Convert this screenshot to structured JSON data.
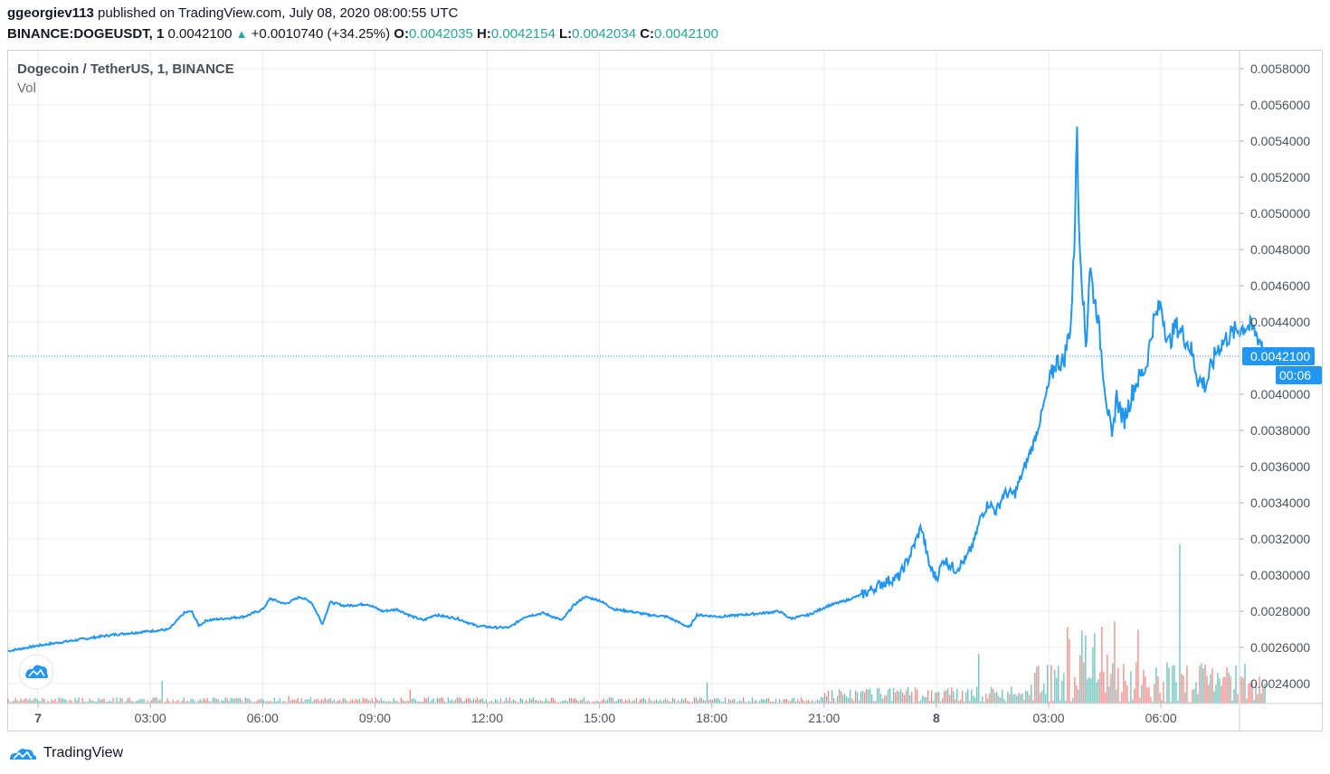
{
  "header": {
    "publisher": "ggeorgiev113",
    "published_text": " published on TradingView.com, July 08, 2020 08:00:55 UTC",
    "symbol": "BINANCE:DOGEUSDT, 1",
    "last": "0.0042100",
    "change": "+0.0010740 (+34.25%)",
    "o_label": "O:",
    "o_value": "0.0042035",
    "h_label": "H:",
    "h_value": "0.0042154",
    "l_label": "L:",
    "l_value": "0.0042034",
    "c_label": "C:",
    "c_value": "0.0042100"
  },
  "legend": {
    "title": "Dogecoin / TetherUS, 1, BINANCE",
    "vol": "Vol"
  },
  "price_badge": "0.0042100",
  "time_badge": "00:06",
  "footer": {
    "brand": "TradingView"
  },
  "colors": {
    "line": "#2196f3",
    "up_volume": "#26a69a",
    "down_volume": "#ef5350",
    "grid": "#e9ecf2",
    "badge": "#2196f3"
  },
  "chart_data": {
    "type": "line",
    "title": "Dogecoin / TetherUS, 1, BINANCE",
    "y_ticks": [
      "0.0058000",
      "0.0056000",
      "0.0054000",
      "0.0052000",
      "0.0050000",
      "0.0048000",
      "0.0046000",
      "0.0044000",
      "0.0040000",
      "0.0038000",
      "0.0036000",
      "0.0034000",
      "0.0032000",
      "0.0030000",
      "0.0028000",
      "0.0026000",
      "0.0024000"
    ],
    "y_tick_values": [
      0.0058,
      0.0056,
      0.0054,
      0.0052,
      0.005,
      0.0048,
      0.0046,
      0.0044,
      0.004,
      0.0038,
      0.0036,
      0.0034,
      0.0032,
      0.003,
      0.0028,
      0.0026,
      0.0024
    ],
    "ylim": [
      0.00229,
      0.0059
    ],
    "x_ticks": [
      {
        "label": "7",
        "hour": 0,
        "bold": true
      },
      {
        "label": "03:00",
        "hour": 3
      },
      {
        "label": "06:00",
        "hour": 6
      },
      {
        "label": "09:00",
        "hour": 9
      },
      {
        "label": "12:00",
        "hour": 12
      },
      {
        "label": "15:00",
        "hour": 15
      },
      {
        "label": "18:00",
        "hour": 18
      },
      {
        "label": "21:00",
        "hour": 21
      },
      {
        "label": "8",
        "hour": 24,
        "bold": true
      },
      {
        "label": "03:00",
        "hour": 27
      },
      {
        "label": "06:00",
        "hour": 30
      }
    ],
    "xlim_hours": [
      -0.8,
      32.1
    ],
    "current_price": 0.00421,
    "series": [
      {
        "type": "line",
        "points": [
          [
            -0.8,
            0.00258
          ],
          [
            0.0,
            0.00261
          ],
          [
            1.0,
            0.00264
          ],
          [
            2.0,
            0.00267
          ],
          [
            3.0,
            0.00269
          ],
          [
            3.5,
            0.0027
          ],
          [
            3.9,
            0.00279
          ],
          [
            4.1,
            0.0028
          ],
          [
            4.3,
            0.00272
          ],
          [
            4.5,
            0.00275
          ],
          [
            5.5,
            0.00277
          ],
          [
            6.0,
            0.00281
          ],
          [
            6.2,
            0.00287
          ],
          [
            6.6,
            0.00284
          ],
          [
            7.0,
            0.00288
          ],
          [
            7.3,
            0.00285
          ],
          [
            7.6,
            0.00273
          ],
          [
            7.8,
            0.00285
          ],
          [
            8.2,
            0.00283
          ],
          [
            8.8,
            0.00284
          ],
          [
            9.2,
            0.0028
          ],
          [
            9.6,
            0.00281
          ],
          [
            10.0,
            0.00277
          ],
          [
            10.3,
            0.00275
          ],
          [
            10.6,
            0.00278
          ],
          [
            11.2,
            0.00276
          ],
          [
            11.7,
            0.00272
          ],
          [
            12.2,
            0.00271
          ],
          [
            12.6,
            0.00271
          ],
          [
            13.0,
            0.00277
          ],
          [
            13.5,
            0.00279
          ],
          [
            14.0,
            0.00275
          ],
          [
            14.3,
            0.00283
          ],
          [
            14.6,
            0.00288
          ],
          [
            15.0,
            0.00286
          ],
          [
            15.4,
            0.00281
          ],
          [
            15.8,
            0.0028
          ],
          [
            16.3,
            0.00278
          ],
          [
            16.8,
            0.00277
          ],
          [
            17.2,
            0.00273
          ],
          [
            17.4,
            0.00271
          ],
          [
            17.6,
            0.00278
          ],
          [
            18.2,
            0.00277
          ],
          [
            18.8,
            0.00278
          ],
          [
            19.4,
            0.00279
          ],
          [
            19.8,
            0.0028
          ],
          [
            20.1,
            0.00276
          ],
          [
            20.6,
            0.00278
          ],
          [
            21.1,
            0.00283
          ],
          [
            21.6,
            0.00286
          ],
          [
            22.1,
            0.0029
          ],
          [
            22.6,
            0.00296
          ],
          [
            23.0,
            0.00299
          ],
          [
            23.3,
            0.00311
          ],
          [
            23.6,
            0.00327
          ],
          [
            23.8,
            0.00306
          ],
          [
            24.0,
            0.00298
          ],
          [
            24.2,
            0.00309
          ],
          [
            24.5,
            0.00303
          ],
          [
            24.8,
            0.00309
          ],
          [
            25.0,
            0.00318
          ],
          [
            25.2,
            0.00333
          ],
          [
            25.4,
            0.0034
          ],
          [
            25.6,
            0.00335
          ],
          [
            25.8,
            0.00345
          ],
          [
            26.1,
            0.00345
          ],
          [
            26.4,
            0.00362
          ],
          [
            26.6,
            0.00373
          ],
          [
            26.8,
            0.00388
          ],
          [
            27.0,
            0.00405
          ],
          [
            27.2,
            0.00418
          ],
          [
            27.4,
            0.00418
          ],
          [
            27.6,
            0.0044
          ],
          [
            27.7,
            0.0049
          ],
          [
            27.75,
            0.00555
          ],
          [
            27.8,
            0.00498
          ],
          [
            27.9,
            0.0046
          ],
          [
            28.0,
            0.00425
          ],
          [
            28.1,
            0.00472
          ],
          [
            28.2,
            0.00455
          ],
          [
            28.3,
            0.00445
          ],
          [
            28.4,
            0.00425
          ],
          [
            28.5,
            0.00405
          ],
          [
            28.7,
            0.00372
          ],
          [
            28.8,
            0.004
          ],
          [
            29.0,
            0.00385
          ],
          [
            29.3,
            0.00405
          ],
          [
            29.6,
            0.00415
          ],
          [
            29.8,
            0.0044
          ],
          [
            30.0,
            0.0045
          ],
          [
            30.2,
            0.00427
          ],
          [
            30.4,
            0.00438
          ],
          [
            30.6,
            0.00433
          ],
          [
            30.8,
            0.00425
          ],
          [
            31.0,
            0.00408
          ],
          [
            31.2,
            0.00405
          ],
          [
            31.5,
            0.00425
          ],
          [
            31.8,
            0.00432
          ],
          [
            32.0,
            0.00435
          ],
          [
            32.3,
            0.00438
          ],
          [
            32.5,
            0.00435
          ],
          [
            32.7,
            0.00428
          ],
          [
            32.8,
            0.0042
          ]
        ]
      }
    ]
  }
}
